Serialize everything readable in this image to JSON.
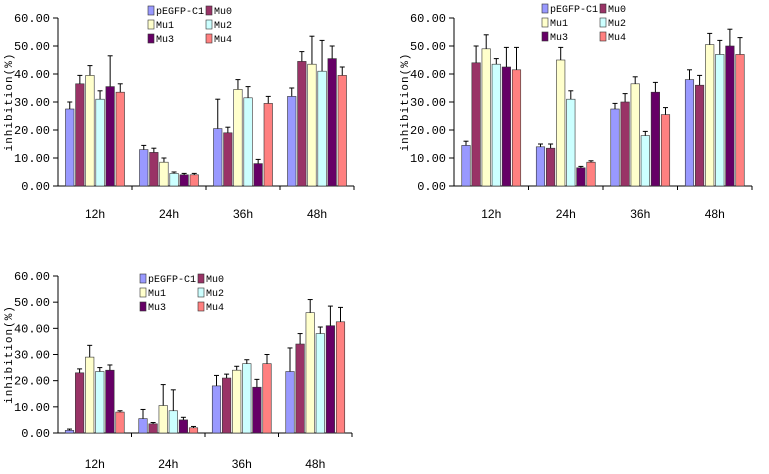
{
  "series_colors": [
    "#9999ff",
    "#993366",
    "#ffffcc",
    "#ccffff",
    "#660066",
    "#ff8080"
  ],
  "chart_data": [
    {
      "type": "bar",
      "categories": [
        "12h",
        "24h",
        "36h",
        "48h"
      ],
      "ylabel": "inhibition(%)",
      "ylim": [
        0,
        60
      ],
      "yticks": [
        "0.00",
        "10.00",
        "20.00",
        "30.00",
        "40.00",
        "50.00",
        "60.00"
      ],
      "series": [
        {
          "name": "pEGFP-C1",
          "values": [
            27.5,
            13.0,
            20.5,
            32.0
          ],
          "errors": [
            2.5,
            1.5,
            10.5,
            3.0
          ]
        },
        {
          "name": "Mu0",
          "values": [
            36.5,
            12.0,
            19.0,
            44.5
          ],
          "errors": [
            3.0,
            1.5,
            2.0,
            3.5
          ]
        },
        {
          "name": "Mu1",
          "values": [
            39.5,
            8.5,
            34.5,
            43.5
          ],
          "errors": [
            3.5,
            1.5,
            3.5,
            10.0
          ]
        },
        {
          "name": "Mu2",
          "values": [
            31.0,
            4.5,
            31.5,
            41.0
          ],
          "errors": [
            3.0,
            0.5,
            4.0,
            11.0
          ]
        },
        {
          "name": "Mu3",
          "values": [
            35.5,
            4.0,
            8.0,
            45.5
          ],
          "errors": [
            11.0,
            0.5,
            1.5,
            4.5
          ]
        },
        {
          "name": "Mu4",
          "values": [
            33.5,
            4.0,
            29.5,
            39.5
          ],
          "errors": [
            3.0,
            0.5,
            2.5,
            3.0
          ]
        }
      ]
    },
    {
      "type": "bar",
      "categories": [
        "12h",
        "24h",
        "36h",
        "48h"
      ],
      "ylabel": "inhibition(%)",
      "ylim": [
        0,
        60
      ],
      "yticks": [
        "0.00",
        "10.00",
        "20.00",
        "30.00",
        "40.00",
        "50.00",
        "60.00"
      ],
      "series": [
        {
          "name": "pEGFP-C1",
          "values": [
            14.5,
            14.0,
            27.5,
            38.0
          ],
          "errors": [
            1.5,
            1.0,
            2.0,
            3.5
          ]
        },
        {
          "name": "Mu0",
          "values": [
            44.0,
            13.5,
            30.0,
            36.0
          ],
          "errors": [
            6.0,
            1.5,
            3.0,
            3.5
          ]
        },
        {
          "name": "Mu1",
          "values": [
            49.0,
            45.0,
            36.5,
            50.5
          ],
          "errors": [
            5.0,
            4.5,
            2.5,
            4.0
          ]
        },
        {
          "name": "Mu2",
          "values": [
            43.5,
            31.0,
            18.0,
            47.0
          ],
          "errors": [
            2.0,
            3.0,
            1.5,
            5.0
          ]
        },
        {
          "name": "Mu3",
          "values": [
            42.5,
            6.5,
            33.5,
            50.0
          ],
          "errors": [
            7.0,
            0.5,
            3.5,
            6.0
          ]
        },
        {
          "name": "Mu4",
          "values": [
            41.5,
            8.5,
            25.5,
            47.0
          ],
          "errors": [
            8.0,
            0.5,
            2.5,
            6.0
          ]
        }
      ]
    },
    {
      "type": "bar",
      "categories": [
        "12h",
        "24h",
        "36h",
        "48h"
      ],
      "ylabel": "inhibition(%)",
      "ylim": [
        0,
        60
      ],
      "yticks": [
        "0.00",
        "10.00",
        "20.00",
        "30.00",
        "40.00",
        "50.00",
        "60.00"
      ],
      "series": [
        {
          "name": "pEGFP-C1",
          "values": [
            1.0,
            5.5,
            18.0,
            23.5
          ],
          "errors": [
            0.5,
            3.5,
            4.0,
            9.0
          ]
        },
        {
          "name": "Mu0",
          "values": [
            23.0,
            3.5,
            21.0,
            34.0
          ],
          "errors": [
            1.5,
            0.5,
            1.5,
            4.0
          ]
        },
        {
          "name": "Mu1",
          "values": [
            29.0,
            10.5,
            24.0,
            46.0
          ],
          "errors": [
            4.5,
            8.0,
            1.5,
            5.0
          ]
        },
        {
          "name": "Mu2",
          "values": [
            23.5,
            8.5,
            26.5,
            38.0
          ],
          "errors": [
            1.5,
            8.0,
            1.5,
            2.5
          ]
        },
        {
          "name": "Mu3",
          "values": [
            24.0,
            5.0,
            17.5,
            41.0
          ],
          "errors": [
            2.0,
            1.0,
            3.0,
            7.5
          ]
        },
        {
          "name": "Mu4",
          "values": [
            8.0,
            2.0,
            26.5,
            42.5
          ],
          "errors": [
            0.5,
            0.5,
            3.5,
            5.5
          ]
        }
      ]
    }
  ]
}
